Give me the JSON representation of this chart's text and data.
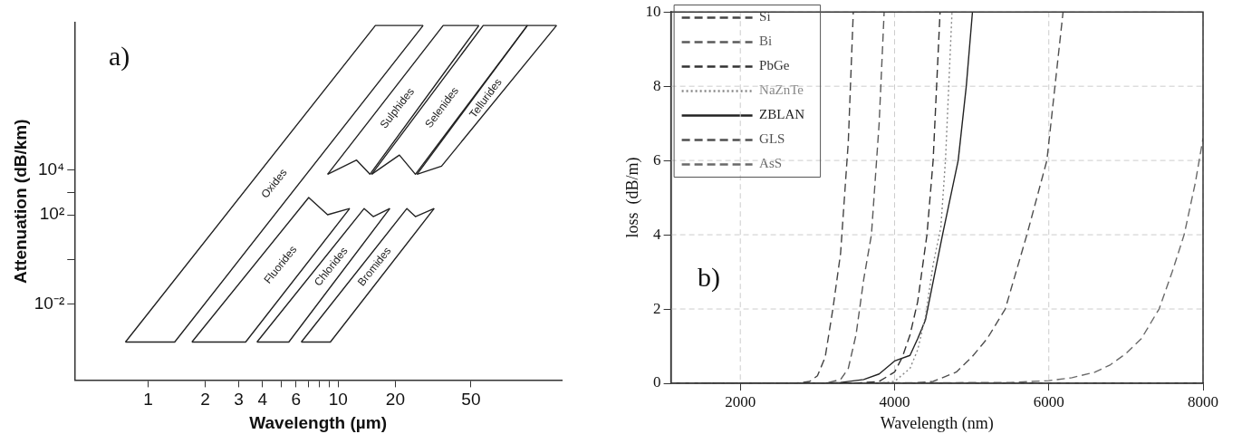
{
  "chart_data": [
    {
      "type": "line",
      "xlabel": "Wavelength (µm)",
      "ylabel": "Attenuation (dB/km)",
      "annotations": [
        "a)"
      ],
      "log": "xy",
      "marker": "none",
      "line_style": "solid",
      "grid": false,
      "legend": false,
      "xlim": [
        0.41,
        150
      ],
      "xticks": [
        1,
        2,
        3,
        4,
        {
          "value": 5,
          "label": null
        },
        6,
        {
          "value": 7,
          "label": null
        },
        {
          "value": 8,
          "label": null
        },
        {
          "value": 9,
          "label": null
        },
        10,
        20,
        50
      ],
      "ylim": [
        4e-06,
        40000000000
      ],
      "yticks": [
        {
          "value": 10000,
          "label": "10⁴"
        },
        {
          "value": 1000,
          "label": null
        },
        {
          "value": 100,
          "label": "10²"
        },
        {
          "value": 1,
          "label": null
        },
        {
          "value": 0.01,
          "label": "10⁻²"
        }
      ],
      "series": [
        {
          "name": "Oxides",
          "color": "#222222",
          "x": [
            0.76,
            15.7,
            28
          ],
          "values": [
            0.0002,
            30000000000,
            30000000000
          ]
        },
        {
          "color": "#222222",
          "x": [
            0.76,
            1.38,
            28
          ],
          "values": [
            0.0002,
            0.0002,
            30000000000
          ]
        },
        {
          "name": "Fluorides",
          "color": "#222222",
          "x": [
            1.7,
            7.0,
            8.8,
            11.5
          ],
          "values": [
            0.0002,
            590,
            100,
            190
          ]
        },
        {
          "color": "#222222",
          "x": [
            1.7,
            3.26,
            11.5
          ],
          "values": [
            0.0002,
            0.0002,
            190
          ]
        },
        {
          "name": "Chlorides",
          "color": "#222222",
          "x": [
            3.74,
            13.7,
            15.3,
            18.7
          ],
          "values": [
            0.0002,
            190,
            83,
            190
          ]
        },
        {
          "color": "#222222",
          "x": [
            3.74,
            5.5,
            18.7
          ],
          "values": [
            0.0002,
            0.0002,
            190
          ]
        },
        {
          "name": "Bromides",
          "color": "#222222",
          "x": [
            6.4,
            23,
            25.5,
            32
          ],
          "values": [
            0.0002,
            190,
            83,
            190
          ]
        },
        {
          "color": "#222222",
          "x": [
            6.4,
            9.1,
            32
          ],
          "values": [
            0.0002,
            0.0002,
            190
          ]
        },
        {
          "name": "Sulphides",
          "color": "#222222",
          "x": [
            8.8,
            35.7,
            55
          ],
          "values": [
            6500,
            30000000000,
            30000000000
          ]
        },
        {
          "color": "#222222",
          "x": [
            8.8,
            12.5,
            14.7,
            55
          ],
          "values": [
            6500,
            28000,
            6500,
            30000000000
          ]
        },
        {
          "name": "Selenides",
          "color": "#222222",
          "x": [
            15,
            58,
            99
          ],
          "values": [
            6500,
            30000000000,
            30000000000
          ]
        },
        {
          "color": "#222222",
          "x": [
            15,
            21,
            25.5,
            99
          ],
          "values": [
            6500,
            47000,
            6500,
            30000000000
          ]
        },
        {
          "name": "Tellurides",
          "color": "#222222",
          "x": [
            26,
            99,
            141
          ],
          "values": [
            6500,
            30000000000,
            30000000000
          ]
        },
        {
          "color": "#222222",
          "x": [
            26,
            35,
            141
          ],
          "values": [
            6500,
            15000,
            30000000000
          ]
        }
      ]
    },
    {
      "type": "line",
      "xlabel": "Wavelength (nm)",
      "ylabel": "loss  (dB/m)",
      "annotations": [
        "b)"
      ],
      "marker": "none",
      "legend": "top left",
      "grid": true,
      "xlim": [
        1100,
        8000
      ],
      "xticks": [
        2000,
        4000,
        6000,
        8000
      ],
      "ylim": [
        0,
        10
      ],
      "yticks": [
        0,
        2,
        4,
        6,
        8,
        10
      ],
      "series": [
        {
          "name": "Si",
          "color": "#444444",
          "line_style": "dashed",
          "x": [
            1500,
            2700,
            2900,
            3000,
            3100,
            3200,
            3300,
            3400,
            3465
          ],
          "values": [
            0,
            0,
            0.05,
            0.2,
            0.7,
            2.0,
            3.5,
            6.5,
            10
          ]
        },
        {
          "name": "Bi",
          "color": "#5a5a5a",
          "line_style": "dashed",
          "x": [
            1500,
            3100,
            3300,
            3400,
            3500,
            3600,
            3700,
            3800,
            3865
          ],
          "values": [
            0,
            0,
            0.1,
            0.4,
            1.3,
            2.8,
            4,
            7,
            10
          ]
        },
        {
          "name": "PbGe",
          "color": "#333333",
          "line_style": "dashed",
          "x": [
            1500,
            3500,
            3800,
            4000,
            4100,
            4200,
            4300,
            4420,
            4500,
            4545,
            4590
          ],
          "values": [
            0,
            0,
            0.05,
            0.3,
            0.7,
            1.3,
            2.2,
            4,
            6,
            8,
            10
          ]
        },
        {
          "name": "NaZnTe",
          "color": "#888888",
          "line_style": "dotted",
          "x": [
            1500,
            3800,
            4000,
            4200,
            4300,
            4400,
            4500,
            4600,
            4660,
            4745
          ],
          "values": [
            0,
            0,
            0.05,
            0.4,
            0.9,
            1.8,
            3.2,
            4.2,
            6,
            10
          ]
        },
        {
          "name": "ZBLAN",
          "color": "#222222",
          "line_style": "solid",
          "x": [
            1500,
            3000,
            3300,
            3600,
            3800,
            4000,
            4200,
            4300,
            4400,
            4622,
            4825,
            4930,
            5010
          ],
          "values": [
            0,
            0,
            0.02,
            0.1,
            0.25,
            0.6,
            0.75,
            1.2,
            1.7,
            4,
            6,
            8,
            10
          ]
        },
        {
          "name": "GLS",
          "color": "#4f4f4f",
          "line_style": "dashed",
          "x": [
            1500,
            4200,
            4500,
            4800,
            5000,
            5200,
            5435,
            5716,
            5975,
            6080,
            6185
          ],
          "values": [
            0,
            0,
            0.05,
            0.3,
            0.7,
            1.2,
            2,
            4,
            6,
            8,
            10
          ]
        },
        {
          "name": "AsS",
          "color": "#6a6a6a",
          "line_style": "dashed",
          "x": [
            1500,
            5500,
            6000,
            6300,
            6600,
            6800,
            7000,
            7200,
            7430,
            7600,
            7755,
            7900,
            8000
          ],
          "values": [
            0,
            0.02,
            0.07,
            0.15,
            0.3,
            0.5,
            0.8,
            1.2,
            2,
            3,
            4,
            5.4,
            6.6
          ]
        }
      ]
    }
  ]
}
